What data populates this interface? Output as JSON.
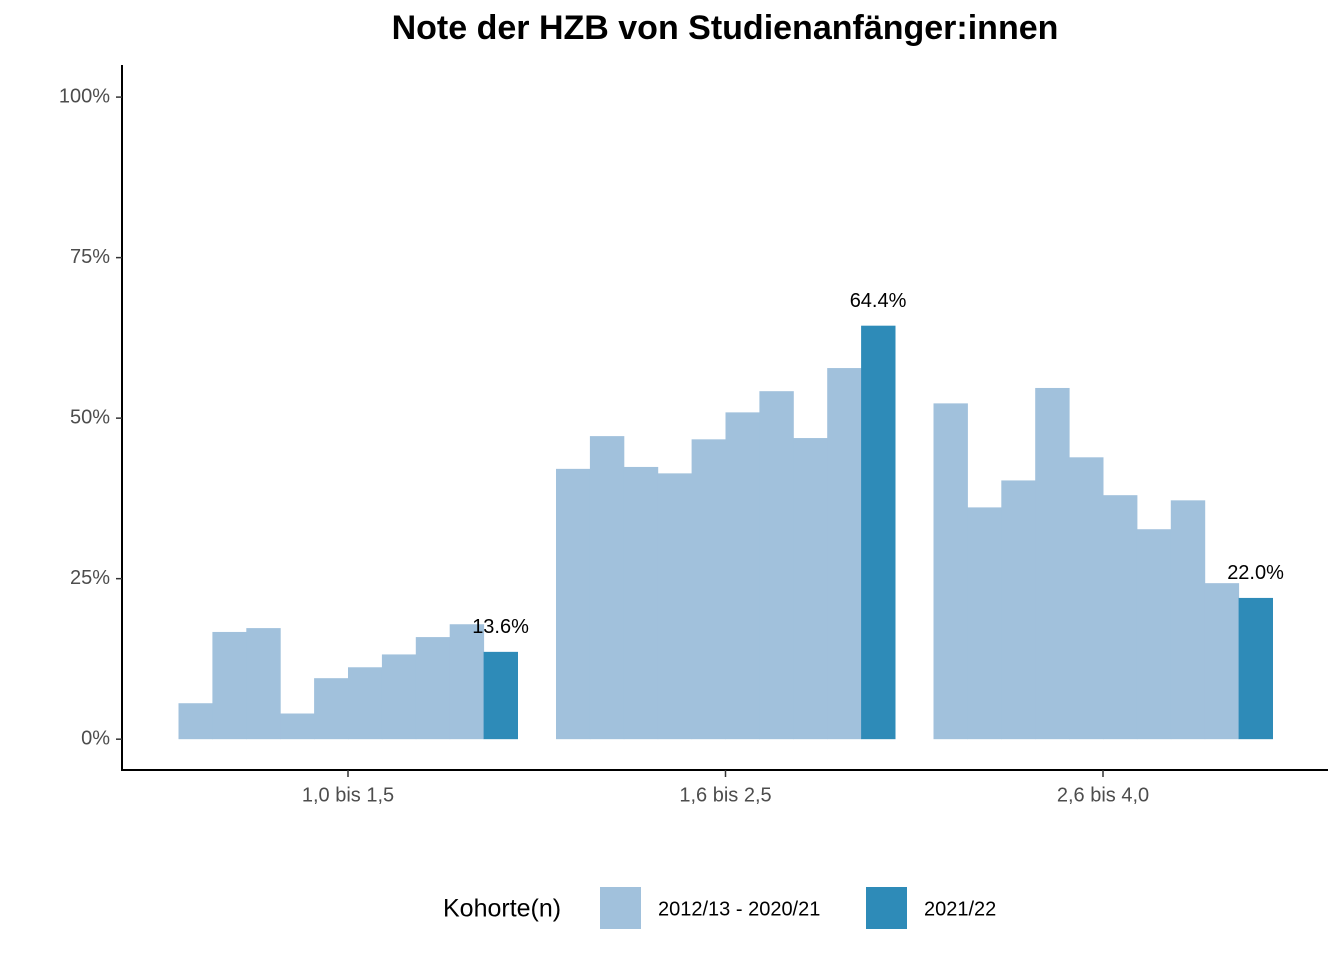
{
  "chart_data": {
    "type": "bar",
    "title": "Note der HZB von Studienanfänger:innen",
    "categories": [
      "1,0 bis 1,5",
      "1,6 bis 2,5",
      "2,6 bis 4,0"
    ],
    "series": [
      {
        "name": "2012/13 - 2020/21",
        "color": "#a1c1dc",
        "values": [
          [
            5.6,
            16.7,
            17.3,
            4.0,
            9.5,
            11.2,
            13.2,
            15.9,
            17.9
          ],
          [
            42.1,
            47.2,
            42.4,
            41.4,
            46.7,
            50.9,
            54.2,
            46.9,
            57.8
          ],
          [
            52.3,
            36.1,
            40.3,
            54.7,
            43.9,
            38.0,
            32.7,
            37.2,
            24.3
          ]
        ]
      },
      {
        "name": "2021/22",
        "color": "#2e8bb8",
        "values": [
          13.6,
          64.4,
          22.0
        ],
        "value_labels": [
          "13.6%",
          "64.4%",
          "22.0%"
        ]
      }
    ],
    "legend_title": "Kohorte(n)",
    "ylim": [
      -4.8,
      105
    ],
    "yticks": [
      {
        "value": 0,
        "label": "0%"
      },
      {
        "value": 25,
        "label": "25%"
      },
      {
        "value": 50,
        "label": "50%"
      },
      {
        "value": 75,
        "label": "75%"
      },
      {
        "value": 100,
        "label": "100%"
      }
    ],
    "grid": false
  }
}
